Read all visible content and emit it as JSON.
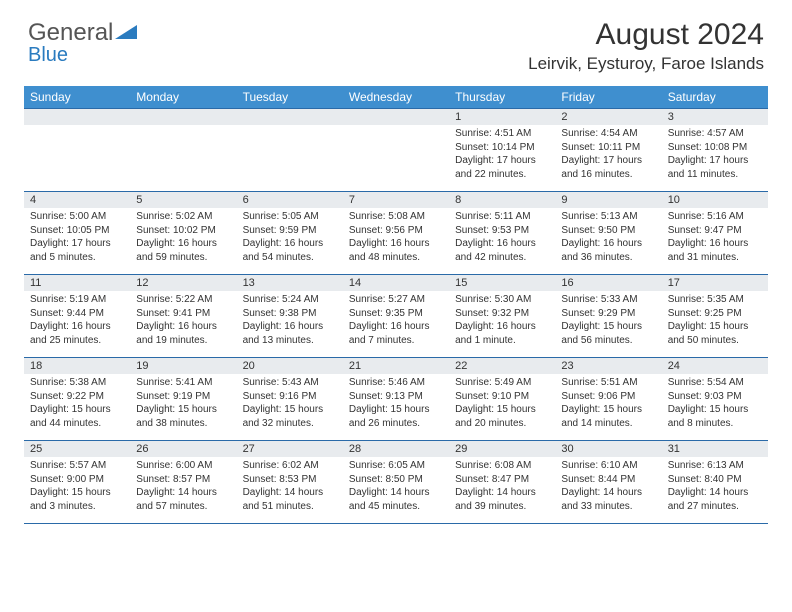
{
  "logo": {
    "text1": "General",
    "text2": "Blue"
  },
  "title": "August 2024",
  "location": "Leirvik, Eysturoy, Faroe Islands",
  "colors": {
    "header_bg": "#3f8fcf",
    "header_text": "#ffffff",
    "daynum_bg": "#e8ebee",
    "border": "#2a6aa8",
    "body_text": "#333333",
    "logo_gray": "#555555",
    "logo_blue": "#2a7bbf",
    "background": "#ffffff"
  },
  "fonts": {
    "title_size": 30,
    "location_size": 17,
    "dayhead_size": 12,
    "daynum_size": 11,
    "daydata_size": 10
  },
  "day_names": [
    "Sunday",
    "Monday",
    "Tuesday",
    "Wednesday",
    "Thursday",
    "Friday",
    "Saturday"
  ],
  "weeks": [
    {
      "nums": [
        "",
        "",
        "",
        "",
        "1",
        "2",
        "3"
      ],
      "data": [
        null,
        null,
        null,
        null,
        {
          "sunrise": "Sunrise: 4:51 AM",
          "sunset": "Sunset: 10:14 PM",
          "daylight": "Daylight: 17 hours and 22 minutes."
        },
        {
          "sunrise": "Sunrise: 4:54 AM",
          "sunset": "Sunset: 10:11 PM",
          "daylight": "Daylight: 17 hours and 16 minutes."
        },
        {
          "sunrise": "Sunrise: 4:57 AM",
          "sunset": "Sunset: 10:08 PM",
          "daylight": "Daylight: 17 hours and 11 minutes."
        }
      ]
    },
    {
      "nums": [
        "4",
        "5",
        "6",
        "7",
        "8",
        "9",
        "10"
      ],
      "data": [
        {
          "sunrise": "Sunrise: 5:00 AM",
          "sunset": "Sunset: 10:05 PM",
          "daylight": "Daylight: 17 hours and 5 minutes."
        },
        {
          "sunrise": "Sunrise: 5:02 AM",
          "sunset": "Sunset: 10:02 PM",
          "daylight": "Daylight: 16 hours and 59 minutes."
        },
        {
          "sunrise": "Sunrise: 5:05 AM",
          "sunset": "Sunset: 9:59 PM",
          "daylight": "Daylight: 16 hours and 54 minutes."
        },
        {
          "sunrise": "Sunrise: 5:08 AM",
          "sunset": "Sunset: 9:56 PM",
          "daylight": "Daylight: 16 hours and 48 minutes."
        },
        {
          "sunrise": "Sunrise: 5:11 AM",
          "sunset": "Sunset: 9:53 PM",
          "daylight": "Daylight: 16 hours and 42 minutes."
        },
        {
          "sunrise": "Sunrise: 5:13 AM",
          "sunset": "Sunset: 9:50 PM",
          "daylight": "Daylight: 16 hours and 36 minutes."
        },
        {
          "sunrise": "Sunrise: 5:16 AM",
          "sunset": "Sunset: 9:47 PM",
          "daylight": "Daylight: 16 hours and 31 minutes."
        }
      ]
    },
    {
      "nums": [
        "11",
        "12",
        "13",
        "14",
        "15",
        "16",
        "17"
      ],
      "data": [
        {
          "sunrise": "Sunrise: 5:19 AM",
          "sunset": "Sunset: 9:44 PM",
          "daylight": "Daylight: 16 hours and 25 minutes."
        },
        {
          "sunrise": "Sunrise: 5:22 AM",
          "sunset": "Sunset: 9:41 PM",
          "daylight": "Daylight: 16 hours and 19 minutes."
        },
        {
          "sunrise": "Sunrise: 5:24 AM",
          "sunset": "Sunset: 9:38 PM",
          "daylight": "Daylight: 16 hours and 13 minutes."
        },
        {
          "sunrise": "Sunrise: 5:27 AM",
          "sunset": "Sunset: 9:35 PM",
          "daylight": "Daylight: 16 hours and 7 minutes."
        },
        {
          "sunrise": "Sunrise: 5:30 AM",
          "sunset": "Sunset: 9:32 PM",
          "daylight": "Daylight: 16 hours and 1 minute."
        },
        {
          "sunrise": "Sunrise: 5:33 AM",
          "sunset": "Sunset: 9:29 PM",
          "daylight": "Daylight: 15 hours and 56 minutes."
        },
        {
          "sunrise": "Sunrise: 5:35 AM",
          "sunset": "Sunset: 9:25 PM",
          "daylight": "Daylight: 15 hours and 50 minutes."
        }
      ]
    },
    {
      "nums": [
        "18",
        "19",
        "20",
        "21",
        "22",
        "23",
        "24"
      ],
      "data": [
        {
          "sunrise": "Sunrise: 5:38 AM",
          "sunset": "Sunset: 9:22 PM",
          "daylight": "Daylight: 15 hours and 44 minutes."
        },
        {
          "sunrise": "Sunrise: 5:41 AM",
          "sunset": "Sunset: 9:19 PM",
          "daylight": "Daylight: 15 hours and 38 minutes."
        },
        {
          "sunrise": "Sunrise: 5:43 AM",
          "sunset": "Sunset: 9:16 PM",
          "daylight": "Daylight: 15 hours and 32 minutes."
        },
        {
          "sunrise": "Sunrise: 5:46 AM",
          "sunset": "Sunset: 9:13 PM",
          "daylight": "Daylight: 15 hours and 26 minutes."
        },
        {
          "sunrise": "Sunrise: 5:49 AM",
          "sunset": "Sunset: 9:10 PM",
          "daylight": "Daylight: 15 hours and 20 minutes."
        },
        {
          "sunrise": "Sunrise: 5:51 AM",
          "sunset": "Sunset: 9:06 PM",
          "daylight": "Daylight: 15 hours and 14 minutes."
        },
        {
          "sunrise": "Sunrise: 5:54 AM",
          "sunset": "Sunset: 9:03 PM",
          "daylight": "Daylight: 15 hours and 8 minutes."
        }
      ]
    },
    {
      "nums": [
        "25",
        "26",
        "27",
        "28",
        "29",
        "30",
        "31"
      ],
      "data": [
        {
          "sunrise": "Sunrise: 5:57 AM",
          "sunset": "Sunset: 9:00 PM",
          "daylight": "Daylight: 15 hours and 3 minutes."
        },
        {
          "sunrise": "Sunrise: 6:00 AM",
          "sunset": "Sunset: 8:57 PM",
          "daylight": "Daylight: 14 hours and 57 minutes."
        },
        {
          "sunrise": "Sunrise: 6:02 AM",
          "sunset": "Sunset: 8:53 PM",
          "daylight": "Daylight: 14 hours and 51 minutes."
        },
        {
          "sunrise": "Sunrise: 6:05 AM",
          "sunset": "Sunset: 8:50 PM",
          "daylight": "Daylight: 14 hours and 45 minutes."
        },
        {
          "sunrise": "Sunrise: 6:08 AM",
          "sunset": "Sunset: 8:47 PM",
          "daylight": "Daylight: 14 hours and 39 minutes."
        },
        {
          "sunrise": "Sunrise: 6:10 AM",
          "sunset": "Sunset: 8:44 PM",
          "daylight": "Daylight: 14 hours and 33 minutes."
        },
        {
          "sunrise": "Sunrise: 6:13 AM",
          "sunset": "Sunset: 8:40 PM",
          "daylight": "Daylight: 14 hours and 27 minutes."
        }
      ]
    }
  ]
}
